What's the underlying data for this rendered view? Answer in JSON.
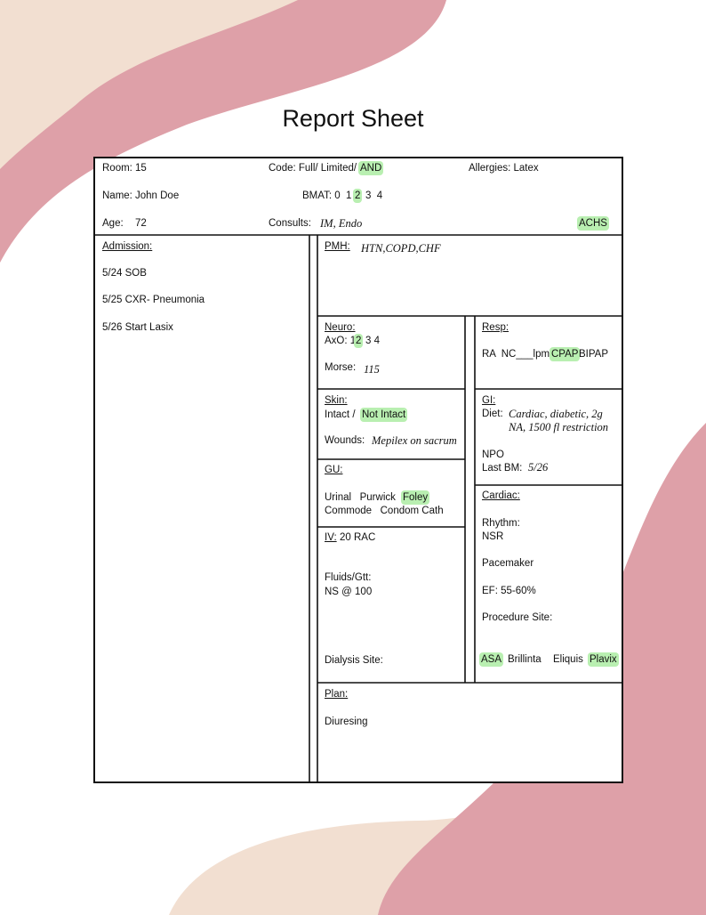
{
  "title": "Report Sheet",
  "header": {
    "room_label": "Room:",
    "room": "15",
    "code_label": "Code: Full/ Limited/",
    "code_selected": "AND",
    "allergies": "Allergies: Latex",
    "name_label": "Name:",
    "name": "John Doe",
    "bmat_label": "BMAT: 0  1",
    "bmat_selected": "2",
    "bmat_rest": "3  4",
    "age_label": "Age:",
    "age": "72",
    "consults_label": "Consults:",
    "consults": "IM, Endo",
    "achs": "ACHS"
  },
  "admission": {
    "label": "Admission:",
    "items": [
      "5/24 SOB",
      "5/25 CXR- Pneumonia",
      "5/26 Start Lasix"
    ]
  },
  "pmh": {
    "label": "PMH:",
    "value": "HTN,COPD,CHF"
  },
  "neuro": {
    "label": "Neuro:",
    "axo_label": "AxO: 1",
    "axo_selected": "2",
    "axo_rest": "3 4",
    "morse_label": "Morse:",
    "morse": "115"
  },
  "resp": {
    "label": "Resp:",
    "options": "RA  NC___lpm",
    "selected": "CPAP",
    "rest": "BIPAP"
  },
  "skin": {
    "label": "Skin:",
    "intact": "Intact /",
    "selected": "Not Intact",
    "wounds_label": "Wounds:",
    "wounds": "Mepilex on sacrum"
  },
  "gi": {
    "label": "GI:",
    "diet_label": "Diet:",
    "diet_line1": "Cardiac, diabetic, 2g",
    "diet_line2": "NA, 1500 fl restriction",
    "npo": "NPO",
    "last_bm_label": "Last BM:",
    "last_bm": "5/26"
  },
  "gu": {
    "label": "GU:",
    "options": "Urinal   Purwick",
    "selected": "Foley",
    "options2": "Commode   Condom Cath"
  },
  "iv": {
    "label": "IV:",
    "value": "20 RAC",
    "fluids_label": "Fluids/Gtt:",
    "fluids": "NS @ 100",
    "dialysis": "Dialysis Site:"
  },
  "cardiac": {
    "label": "Cardiac:",
    "rhythm_label": "Rhythm:",
    "rhythm": "NSR",
    "pacemaker": "Pacemaker",
    "ef": "EF: 55-60%",
    "procedure": "Procedure Site:",
    "meds": [
      {
        "text": "ASA",
        "selected": true
      },
      {
        "text": "Brillinta",
        "selected": false
      },
      {
        "text": "Eliquis",
        "selected": false
      },
      {
        "text": "Plavix",
        "selected": true
      }
    ]
  },
  "plan": {
    "label": "Plan:",
    "value": "Diuresing"
  }
}
